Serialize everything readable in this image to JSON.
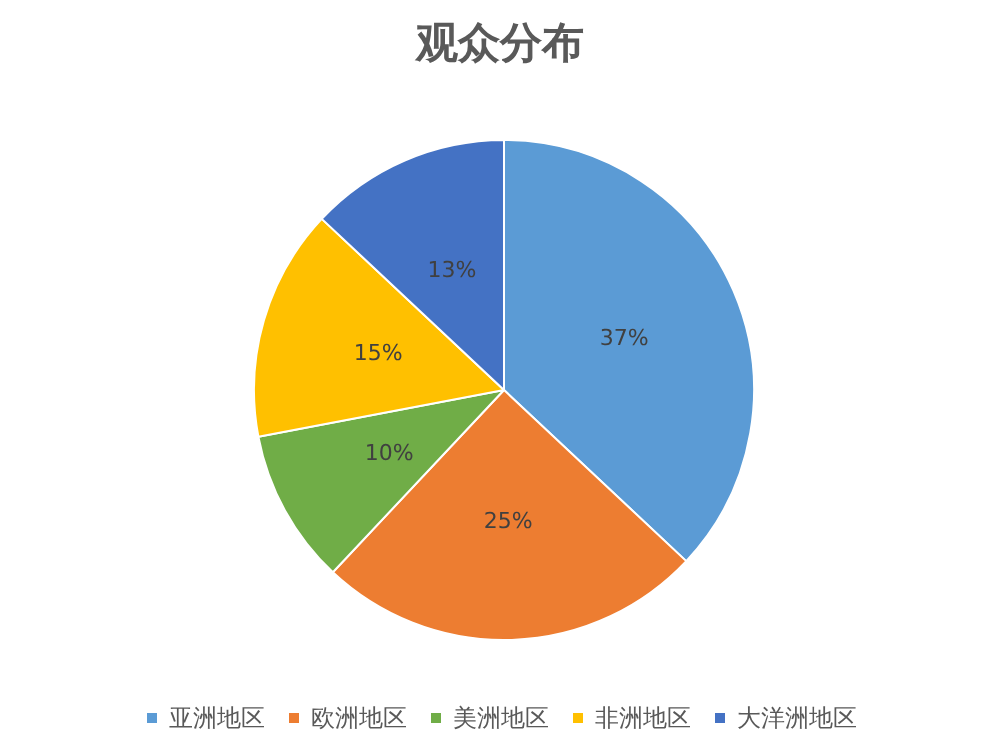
{
  "chart_data": {
    "type": "pie",
    "title": "观众分布",
    "categories": [
      "亚洲地区",
      "欧洲地区",
      "美洲地区",
      "非洲地区",
      "大洋洲地区"
    ],
    "values": [
      37,
      25,
      10,
      15,
      13
    ],
    "colors": [
      "#5b9bd5",
      "#ed7d31",
      "#70ad47",
      "#ffc000",
      "#4472c4"
    ],
    "value_labels": [
      "37%",
      "25%",
      "10%",
      "15%",
      "13%"
    ],
    "legend": "bottom"
  }
}
